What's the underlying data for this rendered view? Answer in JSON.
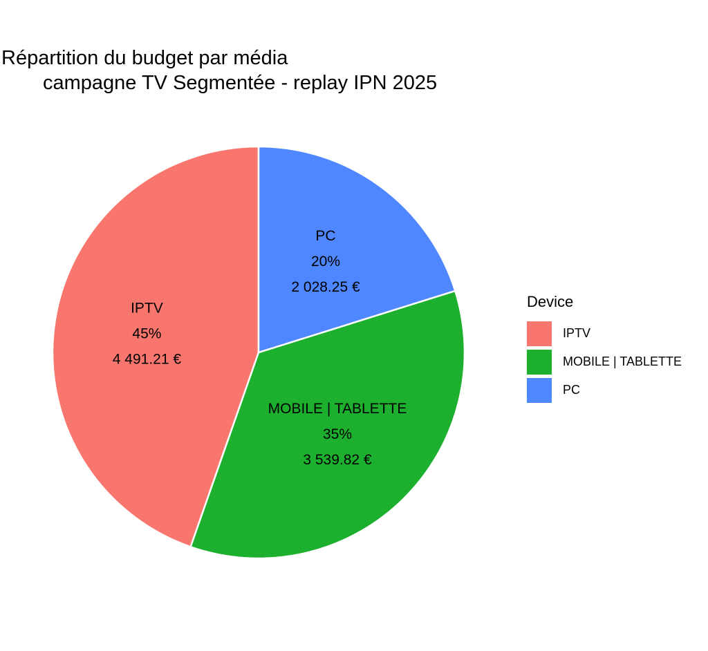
{
  "chart_data": {
    "type": "pie",
    "title": "Répartition du budget par média",
    "subtitle": "campagne TV Segmentée - replay IPN 2025",
    "legend_title": "Device",
    "legend_position": "right",
    "slices": [
      {
        "label": "IPTV",
        "percent_label": "45%",
        "value_label": "4 491.21 €",
        "value": 4491.21,
        "color": "#F8766D"
      },
      {
        "label": "MOBILE | TABLETTE",
        "percent_label": "35%",
        "value_label": "3 539.82 €",
        "value": 3539.82,
        "color": "#1CB02E"
      },
      {
        "label": "PC",
        "percent_label": "20%",
        "value_label": "2 028.25 €",
        "value": 2028.25,
        "color": "#4E87FF"
      }
    ]
  }
}
